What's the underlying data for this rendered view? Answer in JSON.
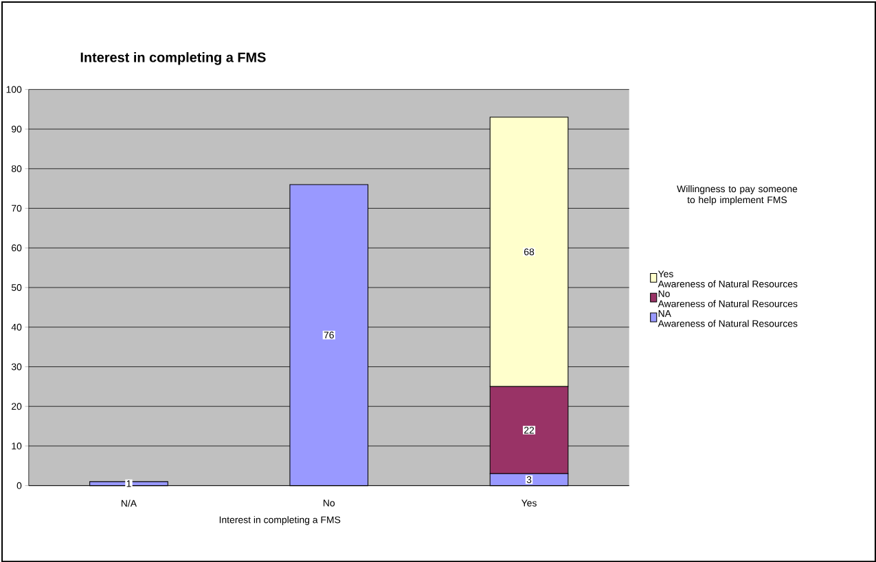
{
  "chart_data": {
    "type": "bar",
    "title": "Interest in completing a FMS",
    "xlabel": "Interest in completing a FMS",
    "legend_title": "Willingness to pay someone to help implement FMS",
    "categories": [
      "N/A",
      "No",
      "Yes"
    ],
    "series": [
      {
        "name": "NA\nAwareness of Natural Resources",
        "color": "#9999ff",
        "values": [
          1,
          76,
          3
        ]
      },
      {
        "name": "No\nAwareness of Natural Resources",
        "color": "#993366",
        "values": [
          null,
          null,
          22
        ]
      },
      {
        "name": "Yes\nAwareness of Natural Resources",
        "color": "#ffffcc",
        "values": [
          null,
          null,
          68
        ]
      }
    ],
    "stacked": true,
    "data_labels": true,
    "ylim": [
      0,
      100
    ],
    "yticks": [
      0,
      10,
      20,
      30,
      40,
      50,
      60,
      70,
      80,
      90,
      100
    ],
    "grid": "y",
    "legend": "right"
  }
}
